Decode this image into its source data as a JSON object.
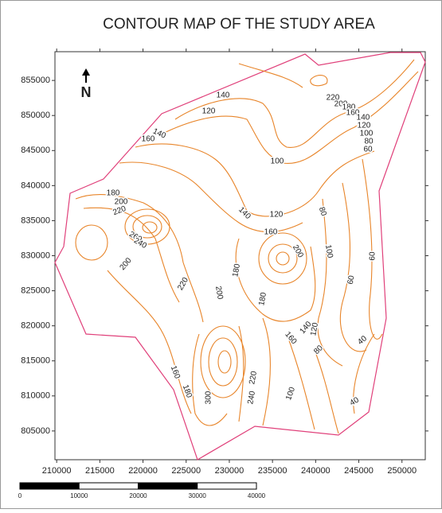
{
  "title": "CONTOUR MAP OF THE STUDY AREA",
  "north": "N",
  "map": {
    "xlim": [
      209800,
      252700
    ],
    "ylim": [
      800900,
      859100
    ],
    "xticks": [
      210000,
      215000,
      220000,
      225000,
      230000,
      235000,
      240000,
      245000,
      250000
    ],
    "yticks": [
      805000,
      810000,
      815000,
      820000,
      825000,
      830000,
      835000,
      840000,
      845000,
      850000,
      855000
    ]
  },
  "contour_labels": [
    140,
    120,
    220,
    200,
    180,
    160,
    140,
    120,
    100,
    80,
    60,
    140,
    160,
    100,
    180,
    200,
    220,
    140,
    120,
    80,
    260,
    240,
    160,
    200,
    100,
    60,
    200,
    180,
    60,
    220,
    200,
    180,
    140,
    160,
    120,
    80,
    40,
    160,
    180,
    300,
    220,
    240,
    100,
    40
  ],
  "scale_bar": {
    "ticks": [
      0,
      10000,
      20000,
      30000,
      40000
    ]
  }
}
